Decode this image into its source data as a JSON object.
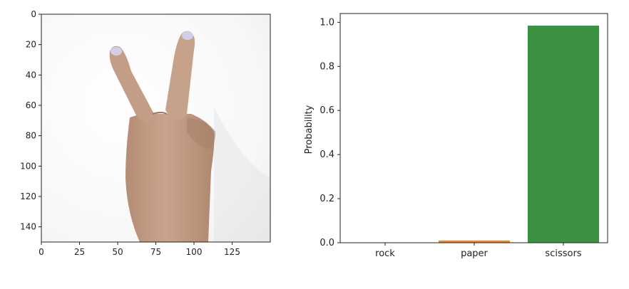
{
  "chart_data": [
    {
      "type": "image",
      "content": "hand making a V (two fingers / scissors) gesture",
      "x_ticks": [
        "0",
        "25",
        "50",
        "75",
        "100",
        "125"
      ],
      "y_ticks": [
        "0",
        "20",
        "40",
        "60",
        "80",
        "100",
        "120",
        "140"
      ],
      "xlim": [
        0,
        150
      ],
      "ylim": [
        150,
        0
      ],
      "colors": {
        "background": "#f4f4f4",
        "skin": "#c39d85",
        "skin_dark": "#a9826b",
        "nail": "#cfcfe6"
      }
    },
    {
      "type": "bar",
      "categories": [
        "rock",
        "paper",
        "scissors"
      ],
      "values": [
        0.0,
        0.01,
        0.985
      ],
      "ylabel": "Probability",
      "xlabel": "",
      "title": "",
      "ylim": [
        0,
        1.04
      ],
      "y_ticks": [
        "0.0",
        "0.2",
        "0.4",
        "0.6",
        "0.8",
        "1.0"
      ],
      "y_tick_values": [
        0,
        0.2,
        0.4,
        0.6,
        0.8,
        1.0
      ],
      "colors": [
        "#1f77b4",
        "#e38a2f",
        "#3a9140"
      ],
      "grid": false
    }
  ]
}
